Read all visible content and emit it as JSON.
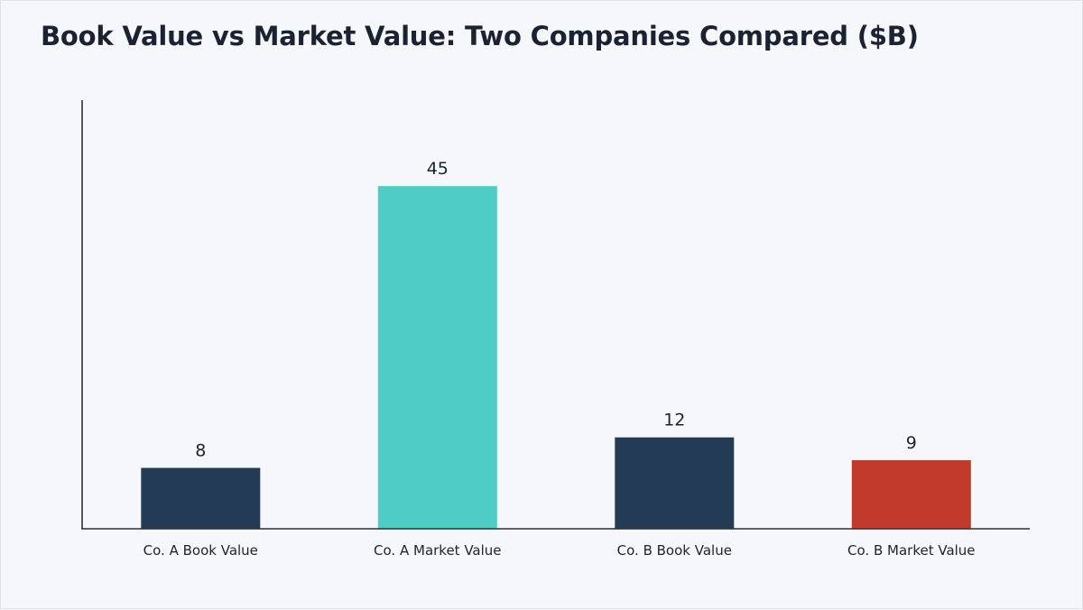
{
  "chart_data": {
    "type": "bar",
    "title": "Book Value vs Market Value: Two Companies Compared ($B)",
    "xlabel": "",
    "ylabel": "",
    "categories": [
      "Co. A Book Value",
      "Co. A Market Value",
      "Co. B Book Value",
      "Co. B Market Value"
    ],
    "values": [
      8,
      45,
      12,
      9
    ],
    "bar_colors": [
      "#243b55",
      "#4ecdc4",
      "#243b55",
      "#c0392b"
    ],
    "data_labels": [
      "8",
      "45",
      "12",
      "9"
    ],
    "ylim": [
      0,
      56
    ],
    "grid": false,
    "legend": "none"
  }
}
